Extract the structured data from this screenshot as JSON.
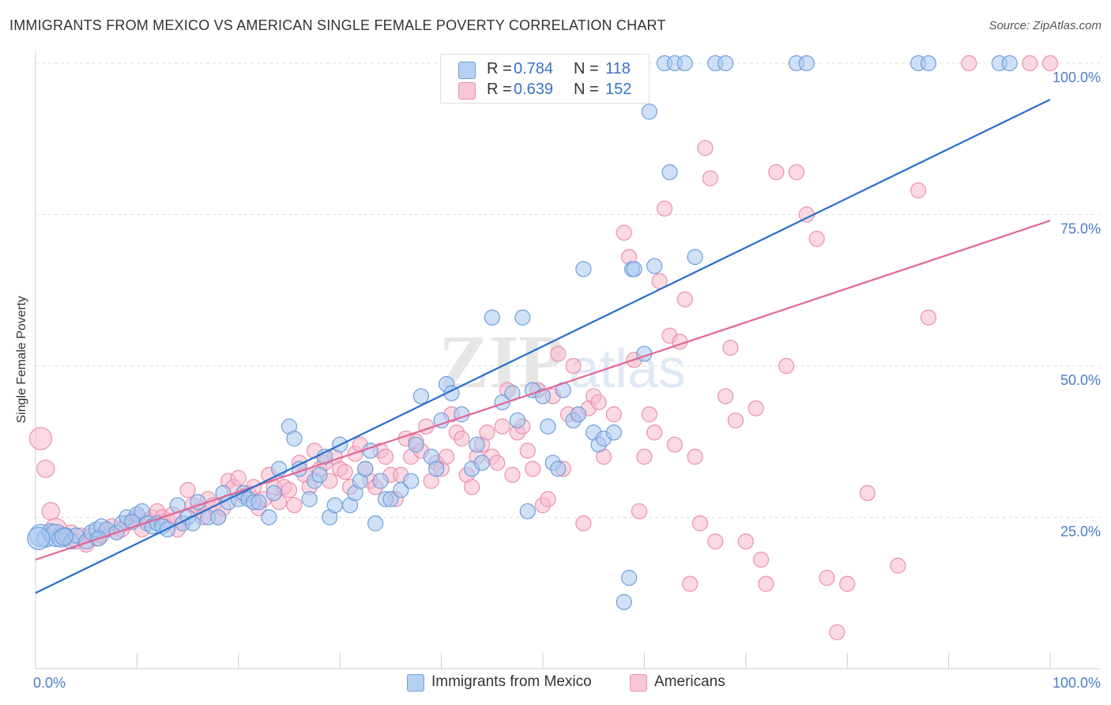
{
  "title": "IMMIGRANTS FROM MEXICO VS AMERICAN SINGLE FEMALE POVERTY CORRELATION CHART",
  "source": "Source: ZipAtlas.com",
  "watermark": {
    "zip": "ZIP",
    "atlas": "atlas"
  },
  "colors": {
    "blue_fill": "#a9c8f0",
    "blue_stroke": "#6f9edb",
    "blue_line": "#2a6fcf",
    "pink_fill": "#f6b9cc",
    "pink_stroke": "#ec8fad",
    "pink_line": "#e46594",
    "axis_label": "#4a7cc9",
    "grid": "#dddddd"
  },
  "legend_top": {
    "series1": {
      "r_label": "R = ",
      "r_value": "0.784",
      "n_label": "N = ",
      "n_value": "118"
    },
    "series2": {
      "r_label": "R = ",
      "r_value": "0.639",
      "n_label": "N = ",
      "n_value": "152"
    }
  },
  "legend_bottom": [
    "Immigrants from Mexico",
    "Americans"
  ],
  "chart_data": {
    "type": "scatter",
    "title": "IMMIGRANTS FROM MEXICO VS AMERICAN SINGLE FEMALE POVERTY CORRELATION CHART",
    "xlabel": "",
    "ylabel": "Single Female Poverty",
    "xlim": [
      0,
      100
    ],
    "ylim": [
      0,
      100
    ],
    "x_tick_labels": [
      "0.0%",
      "100.0%"
    ],
    "y_tick_labels": [
      "25.0%",
      "50.0%",
      "75.0%",
      "100.0%"
    ],
    "y_ticks": [
      25,
      50,
      75,
      100
    ],
    "legend_position": "top-center",
    "series": [
      {
        "name": "Immigrants from Mexico",
        "r": 0.784,
        "n": 118,
        "trend": {
          "x": [
            0,
            100
          ],
          "y": [
            12.5,
            94
          ]
        },
        "points": [
          [
            0.5,
            22
          ],
          [
            1,
            21.5
          ],
          [
            1.5,
            22.5
          ],
          [
            2,
            22
          ],
          [
            2.5,
            21.5
          ],
          [
            3,
            22
          ],
          [
            3.5,
            21
          ],
          [
            4,
            22
          ],
          [
            5,
            21
          ],
          [
            5.5,
            22.5
          ],
          [
            6,
            23
          ],
          [
            6.5,
            23.5
          ],
          [
            7,
            23
          ],
          [
            8,
            22.5
          ],
          [
            8.5,
            24
          ],
          [
            9,
            25
          ],
          [
            10,
            25.5
          ],
          [
            10.5,
            26
          ],
          [
            11,
            24
          ],
          [
            11.5,
            23.5
          ],
          [
            12,
            24
          ],
          [
            12.5,
            23.5
          ],
          [
            13,
            23
          ],
          [
            14,
            27
          ],
          [
            14.5,
            24
          ],
          [
            15,
            25
          ],
          [
            15.5,
            24
          ],
          [
            16,
            27.5
          ],
          [
            17,
            25
          ],
          [
            18,
            25
          ],
          [
            18.5,
            29
          ],
          [
            19,
            27.5
          ],
          [
            20,
            28
          ],
          [
            20.5,
            29
          ],
          [
            21,
            28
          ],
          [
            21.5,
            27.5
          ],
          [
            22,
            27.5
          ],
          [
            23,
            25
          ],
          [
            23.5,
            29
          ],
          [
            24,
            33
          ],
          [
            25,
            40
          ],
          [
            25.5,
            38
          ],
          [
            26,
            33
          ],
          [
            27,
            28
          ],
          [
            27.5,
            31
          ],
          [
            28,
            32
          ],
          [
            28.5,
            35
          ],
          [
            29,
            25
          ],
          [
            29.5,
            27
          ],
          [
            30,
            37
          ],
          [
            31,
            27
          ],
          [
            31.5,
            29
          ],
          [
            32,
            31
          ],
          [
            32.5,
            33
          ],
          [
            33,
            36
          ],
          [
            33.5,
            24
          ],
          [
            34,
            31
          ],
          [
            34.5,
            28
          ],
          [
            35,
            28
          ],
          [
            36,
            29.5
          ],
          [
            37,
            31
          ],
          [
            37.5,
            37
          ],
          [
            38,
            45
          ],
          [
            39,
            35
          ],
          [
            39.5,
            33
          ],
          [
            40,
            41
          ],
          [
            40.5,
            47
          ],
          [
            41,
            45.5
          ],
          [
            42,
            42
          ],
          [
            43,
            33
          ],
          [
            43.5,
            37
          ],
          [
            44,
            34
          ],
          [
            45,
            58
          ],
          [
            46,
            44
          ],
          [
            47,
            45.5
          ],
          [
            47.5,
            41
          ],
          [
            48,
            58
          ],
          [
            48.5,
            26
          ],
          [
            49,
            46
          ],
          [
            50,
            45
          ],
          [
            50.5,
            40
          ],
          [
            51,
            34
          ],
          [
            51.5,
            33
          ],
          [
            52,
            46
          ],
          [
            53,
            41
          ],
          [
            53.5,
            42
          ],
          [
            54,
            66
          ],
          [
            55,
            39
          ],
          [
            55.5,
            37
          ],
          [
            56,
            38
          ],
          [
            57,
            39
          ],
          [
            58,
            11
          ],
          [
            58.5,
            15
          ],
          [
            58.8,
            66
          ],
          [
            59,
            66
          ],
          [
            60,
            52
          ],
          [
            60.5,
            92
          ],
          [
            61,
            66.5
          ],
          [
            62,
            100
          ],
          [
            62.5,
            82
          ],
          [
            63,
            100
          ],
          [
            64,
            100
          ],
          [
            65,
            68
          ],
          [
            67,
            100
          ],
          [
            68,
            100
          ],
          [
            75,
            100
          ],
          [
            76,
            100
          ],
          [
            87,
            100
          ],
          [
            88,
            100
          ],
          [
            95,
            100
          ],
          [
            96,
            100
          ],
          [
            0.3,
            21.5
          ],
          [
            2.8,
            21.8
          ],
          [
            6.2,
            21.5
          ],
          [
            9.5,
            24.2
          ]
        ],
        "sizes": "mostly-medium"
      },
      {
        "name": "Americans",
        "r": 0.639,
        "n": 152,
        "trend": {
          "x": [
            0,
            100
          ],
          "y": [
            18,
            74
          ]
        },
        "points": [
          [
            0.5,
            38
          ],
          [
            1,
            33
          ],
          [
            1.5,
            26
          ],
          [
            2,
            23
          ],
          [
            2.5,
            22
          ],
          [
            3,
            21.5
          ],
          [
            3.5,
            22.5
          ],
          [
            4,
            21
          ],
          [
            4.5,
            22
          ],
          [
            5,
            20.5
          ],
          [
            5.5,
            22
          ],
          [
            6,
            21.5
          ],
          [
            6.5,
            22
          ],
          [
            7,
            23
          ],
          [
            7.5,
            23.5
          ],
          [
            8,
            22.5
          ],
          [
            8.5,
            23
          ],
          [
            9,
            24
          ],
          [
            9.5,
            24.5
          ],
          [
            10,
            25
          ],
          [
            10.5,
            23
          ],
          [
            11,
            24.5
          ],
          [
            11.5,
            25
          ],
          [
            12,
            26
          ],
          [
            12.5,
            25
          ],
          [
            13,
            24.5
          ],
          [
            13.5,
            25.5
          ],
          [
            14,
            23
          ],
          [
            14.5,
            24
          ],
          [
            15,
            29.5
          ],
          [
            15.5,
            27
          ],
          [
            16,
            26
          ],
          [
            16.5,
            25
          ],
          [
            17,
            28
          ],
          [
            17.5,
            27
          ],
          [
            18,
            25
          ],
          [
            18.5,
            26.5
          ],
          [
            19,
            31
          ],
          [
            19.5,
            30
          ],
          [
            20,
            31.5
          ],
          [
            20.5,
            28.5
          ],
          [
            21,
            29
          ],
          [
            21.5,
            30
          ],
          [
            22,
            26.5
          ],
          [
            22.5,
            28
          ],
          [
            23,
            32
          ],
          [
            23.5,
            30
          ],
          [
            24,
            27.5
          ],
          [
            24.5,
            30
          ],
          [
            25,
            29.5
          ],
          [
            25.5,
            27
          ],
          [
            26,
            34
          ],
          [
            26.5,
            32
          ],
          [
            27,
            30
          ],
          [
            27.5,
            36
          ],
          [
            28,
            33
          ],
          [
            28.5,
            34
          ],
          [
            29,
            31
          ],
          [
            29.5,
            35
          ],
          [
            30,
            33
          ],
          [
            30.5,
            32.5
          ],
          [
            31,
            30
          ],
          [
            31.5,
            35.5
          ],
          [
            32,
            37
          ],
          [
            32.5,
            33
          ],
          [
            33,
            31
          ],
          [
            33.5,
            30
          ],
          [
            34,
            36
          ],
          [
            34.5,
            35
          ],
          [
            35,
            32
          ],
          [
            35.5,
            28
          ],
          [
            36,
            32
          ],
          [
            36.5,
            38
          ],
          [
            37,
            35
          ],
          [
            37.5,
            37.5
          ],
          [
            38,
            36
          ],
          [
            38.5,
            40
          ],
          [
            39,
            31
          ],
          [
            39.5,
            34
          ],
          [
            40,
            33
          ],
          [
            40.5,
            35
          ],
          [
            41,
            42
          ],
          [
            41.5,
            39
          ],
          [
            42,
            38
          ],
          [
            42.5,
            32
          ],
          [
            43,
            30
          ],
          [
            43.5,
            35
          ],
          [
            44,
            37
          ],
          [
            44.5,
            39
          ],
          [
            45,
            35
          ],
          [
            45.5,
            34
          ],
          [
            46,
            40
          ],
          [
            46.5,
            46
          ],
          [
            47,
            32
          ],
          [
            47.5,
            39
          ],
          [
            48,
            40
          ],
          [
            48.5,
            36
          ],
          [
            49,
            33
          ],
          [
            49.5,
            46
          ],
          [
            50,
            27
          ],
          [
            50.5,
            28
          ],
          [
            51,
            45
          ],
          [
            51.5,
            52
          ],
          [
            52,
            33
          ],
          [
            52.5,
            42
          ],
          [
            53,
            50
          ],
          [
            53.5,
            42
          ],
          [
            54,
            24
          ],
          [
            54.5,
            43
          ],
          [
            55,
            45
          ],
          [
            55.5,
            44
          ],
          [
            56,
            35
          ],
          [
            57,
            42
          ],
          [
            58,
            72
          ],
          [
            58.5,
            68
          ],
          [
            59,
            51
          ],
          [
            59.5,
            26
          ],
          [
            60,
            35
          ],
          [
            60.5,
            42
          ],
          [
            61,
            39
          ],
          [
            61.5,
            64
          ],
          [
            62,
            76
          ],
          [
            62.5,
            55
          ],
          [
            63,
            37
          ],
          [
            63.5,
            54
          ],
          [
            64,
            61
          ],
          [
            64.5,
            14
          ],
          [
            65,
            35
          ],
          [
            65.5,
            24
          ],
          [
            66,
            86
          ],
          [
            66.5,
            81
          ],
          [
            67,
            21
          ],
          [
            68,
            45
          ],
          [
            68.5,
            53
          ],
          [
            69,
            41
          ],
          [
            70,
            21
          ],
          [
            71,
            43
          ],
          [
            71.5,
            18
          ],
          [
            72,
            14
          ],
          [
            73,
            82
          ],
          [
            74,
            50
          ],
          [
            75,
            82
          ],
          [
            76,
            75
          ],
          [
            77,
            71
          ],
          [
            78,
            15
          ],
          [
            79,
            6
          ],
          [
            80,
            14
          ],
          [
            82,
            29
          ],
          [
            85,
            17
          ],
          [
            87,
            79
          ],
          [
            88,
            58
          ],
          [
            92,
            100
          ],
          [
            98,
            100
          ],
          [
            100,
            100
          ]
        ],
        "sizes": "mostly-medium"
      }
    ]
  }
}
